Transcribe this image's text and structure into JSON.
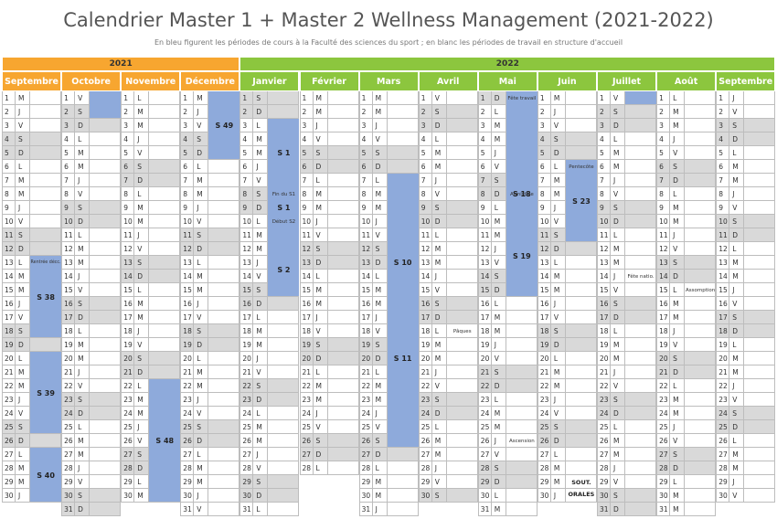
{
  "title": "Calendrier Master 1 + Master 2 Wellness Management (2021-2022)",
  "subtitle": "En bleu figurent les périodes de cours à la Faculté des sciences du sport ; en blanc les périodes de travail en structure d'accueil",
  "years": [
    {
      "label": "2021",
      "color": "#f7a630"
    },
    {
      "label": "2022",
      "color": "#8cc63e"
    }
  ],
  "months": [
    {
      "name": "Septembre",
      "year": 0,
      "start": 2,
      "days": 30
    },
    {
      "name": "Octobre",
      "year": 0,
      "start": 4,
      "days": 31
    },
    {
      "name": "Novembre",
      "year": 0,
      "start": 0,
      "days": 30
    },
    {
      "name": "Décembre",
      "year": 0,
      "start": 2,
      "days": 31
    },
    {
      "name": "Janvier",
      "year": 1,
      "start": 5,
      "days": 31
    },
    {
      "name": "Février",
      "year": 1,
      "start": 1,
      "days": 28
    },
    {
      "name": "Mars",
      "year": 1,
      "start": 1,
      "days": 31
    },
    {
      "name": "Avril",
      "year": 1,
      "start": 4,
      "days": 30
    },
    {
      "name": "Mai",
      "year": 1,
      "start": 6,
      "days": 31
    },
    {
      "name": "Juin",
      "year": 1,
      "start": 2,
      "days": 30
    },
    {
      "name": "Juillet",
      "year": 1,
      "start": 4,
      "days": 31
    },
    {
      "name": "Août",
      "year": 1,
      "start": 0,
      "days": 31
    },
    {
      "name": "Septembre",
      "year": 1,
      "start": 3,
      "days": 30
    }
  ],
  "weekday_letters": [
    "L",
    "M",
    "M",
    "J",
    "V",
    "S",
    "D"
  ],
  "course_color": "#8eaadb",
  "weekend_color": "#d9d9d9",
  "courses": [
    {
      "month": 0,
      "from": 13,
      "to": 18,
      "label": "S 38"
    },
    {
      "month": 0,
      "from": 20,
      "to": 25,
      "label": "S 39"
    },
    {
      "month": 0,
      "from": 27,
      "to": 30,
      "label": "S 40"
    },
    {
      "month": 1,
      "from": 1,
      "to": 2,
      "label": ""
    },
    {
      "month": 2,
      "from": 22,
      "to": 30,
      "label": "S 48"
    },
    {
      "month": 3,
      "from": 1,
      "to": 5,
      "label": "S 49"
    },
    {
      "month": 4,
      "from": 3,
      "to": 15,
      "label": "S 1"
    },
    {
      "month": 6,
      "from": 7,
      "to": 19,
      "label": "S 10"
    },
    {
      "month": 6,
      "from": 14,
      "to": 26,
      "label": "S 11"
    },
    {
      "month": 8,
      "from": 1,
      "to": 15,
      "label": "S 18"
    },
    {
      "month": 9,
      "from": 6,
      "to": 11,
      "label": "S 23"
    },
    {
      "month": 10,
      "from": 1,
      "to": 1,
      "label": ""
    }
  ],
  "labels": [
    {
      "month": 4,
      "from": 4,
      "to": 6,
      "text": "S 1"
    },
    {
      "month": 4,
      "from": 13,
      "to": 14,
      "text": "S 2"
    },
    {
      "month": 8,
      "from": 9,
      "to": 16,
      "text": "S 19"
    },
    {
      "month": 9,
      "from": 29,
      "to": 30,
      "text": "SOUT. ORALES"
    }
  ],
  "notes": [
    {
      "month": 0,
      "day": 13,
      "text": "Rentrée décc.",
      "small": true
    },
    {
      "month": 4,
      "day": 8,
      "text": "Fin du S1",
      "small": false
    },
    {
      "month": 4,
      "day": 10,
      "text": "Début S2",
      "small": false
    },
    {
      "month": 7,
      "day": 18,
      "text": "Pâques",
      "small": false
    },
    {
      "month": 8,
      "day": 1,
      "text": "Fête travail",
      "small": false
    },
    {
      "month": 8,
      "day": 8,
      "text": "Armistice",
      "small": false
    },
    {
      "month": 8,
      "day": 26,
      "text": "Ascension",
      "small": false
    },
    {
      "month": 9,
      "day": 6,
      "text": "Pentecôte",
      "small": false
    },
    {
      "month": 10,
      "day": 14,
      "text": "Fête natio.",
      "small": false
    },
    {
      "month": 11,
      "day": 15,
      "text": "Assomption",
      "small": false
    }
  ]
}
